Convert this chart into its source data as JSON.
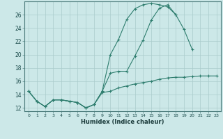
{
  "x": [
    0,
    1,
    2,
    3,
    4,
    5,
    6,
    7,
    8,
    9,
    10,
    11,
    12,
    13,
    14,
    15,
    16,
    17,
    18,
    19,
    20,
    21,
    22,
    23
  ],
  "line_top": [
    14.5,
    13.0,
    12.2,
    13.2,
    13.2,
    13.0,
    12.8,
    12.0,
    12.5,
    14.5,
    20.0,
    22.3,
    25.3,
    26.9,
    27.5,
    27.7,
    27.5,
    27.2,
    26.0,
    null,
    null,
    null,
    null,
    null
  ],
  "line_mid": [
    14.5,
    13.0,
    12.2,
    13.2,
    13.2,
    13.0,
    12.8,
    12.0,
    12.5,
    14.5,
    17.2,
    17.5,
    17.5,
    19.8,
    22.2,
    25.2,
    27.0,
    27.5,
    26.0,
    23.8,
    20.8,
    null,
    null,
    null
  ],
  "line_bot": [
    14.5,
    13.0,
    12.2,
    13.2,
    13.2,
    13.0,
    12.8,
    12.0,
    12.5,
    14.3,
    14.5,
    15.0,
    15.3,
    15.6,
    15.8,
    16.0,
    16.3,
    16.5,
    16.6,
    16.6,
    16.7,
    16.8,
    16.8,
    16.8
  ],
  "color": "#2e7d6e",
  "bg_color": "#cce8e8",
  "grid_color": "#aacccc",
  "xlabel": "Humidex (Indice chaleur)",
  "ylim": [
    11.5,
    28.0
  ],
  "xlim": [
    -0.5,
    23.5
  ],
  "yticks": [
    12,
    14,
    16,
    18,
    20,
    22,
    24,
    26
  ],
  "xticks": [
    0,
    1,
    2,
    3,
    4,
    5,
    6,
    7,
    8,
    9,
    10,
    11,
    12,
    13,
    14,
    15,
    16,
    17,
    18,
    19,
    20,
    21,
    22,
    23
  ]
}
